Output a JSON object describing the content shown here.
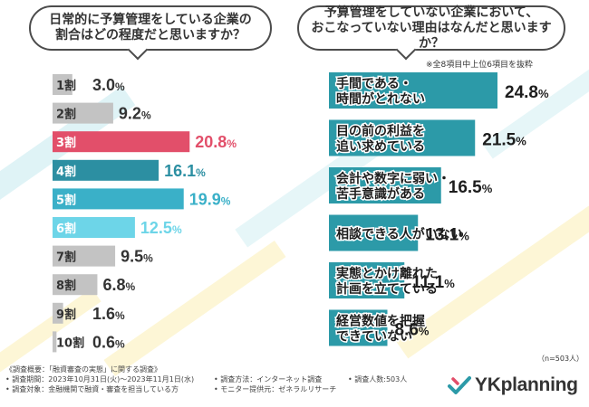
{
  "left": {
    "question": [
      "日常的に予算管理をしている企業の",
      "割合はどの程度だと思いますか？"
    ],
    "chart_data": {
      "type": "bar",
      "orientation": "horizontal",
      "categories": [
        "1割",
        "2割",
        "3割",
        "4割",
        "5割",
        "6割",
        "7割",
        "8割",
        "9割",
        "10割"
      ],
      "values": [
        3.0,
        9.2,
        20.8,
        16.1,
        19.9,
        12.5,
        9.5,
        6.8,
        1.6,
        0.6
      ],
      "value_labels": [
        "3.0%",
        "9.2%",
        "20.8%",
        "16.1%",
        "19.9%",
        "12.5%",
        "9.5%",
        "6.8%",
        "1.6%",
        "0.6%"
      ],
      "colors": [
        "#c3c3c3",
        "#c3c3c3",
        "#e24f6a",
        "#2c8fa2",
        "#3ab0c8",
        "#6dd5e8",
        "#c3c3c3",
        "#c3c3c3",
        "#c3c3c3",
        "#c3c3c3"
      ],
      "label_colors": [
        "#333333",
        "#333333",
        "#e24f6a",
        "#2c8fa2",
        "#3ab0c8",
        "#6dd5e8",
        "#333333",
        "#333333",
        "#333333",
        "#333333"
      ],
      "xlim": [
        0,
        22
      ]
    }
  },
  "right": {
    "question": [
      "予算管理をしていない企業において、",
      "おこなっていない理由はなんだと思いますか？"
    ],
    "note": "※全8項目中上位6項目を抜粋",
    "sample_size": "（n=503人）",
    "chart_data": {
      "type": "bar",
      "orientation": "horizontal",
      "categories": [
        [
          "手間である・",
          "時間がとれない"
        ],
        [
          "目の前の利益を",
          "追い求めている"
        ],
        [
          "会計や数字に弱い・",
          "苦手意識がある"
        ],
        [
          "相談できる人がいない"
        ],
        [
          "実態とかけ離れた",
          "計画を立てている"
        ],
        [
          "経営数値を把握",
          "できていない"
        ]
      ],
      "values": [
        24.8,
        21.5,
        16.5,
        13.1,
        11.1,
        8.6
      ],
      "value_labels": [
        "24.8%",
        "21.5%",
        "16.5%",
        "13.1%",
        "11.1%",
        "8.6%"
      ],
      "color": "#2c9aa8",
      "xlim": [
        0,
        26
      ]
    }
  },
  "footer": {
    "summary": "《調査概要：「融資審査の実態」に関する調査》",
    "period": "• 調査期間：2023年10月31日(火)〜2023年11月1日(水)",
    "method": "• 調査方法：インターネット調査",
    "respondents": "• 調査人数:503人",
    "target": "• 調査対象：金融機関で融資・審査を担当している方",
    "provider": "• モニター提供元：ゼネラルリサーチ"
  },
  "logo": {
    "text": "YKplanning"
  },
  "colors": {
    "teal": "#2c9aa8",
    "red": "#e24f6a",
    "gray": "#c3c3c3"
  }
}
